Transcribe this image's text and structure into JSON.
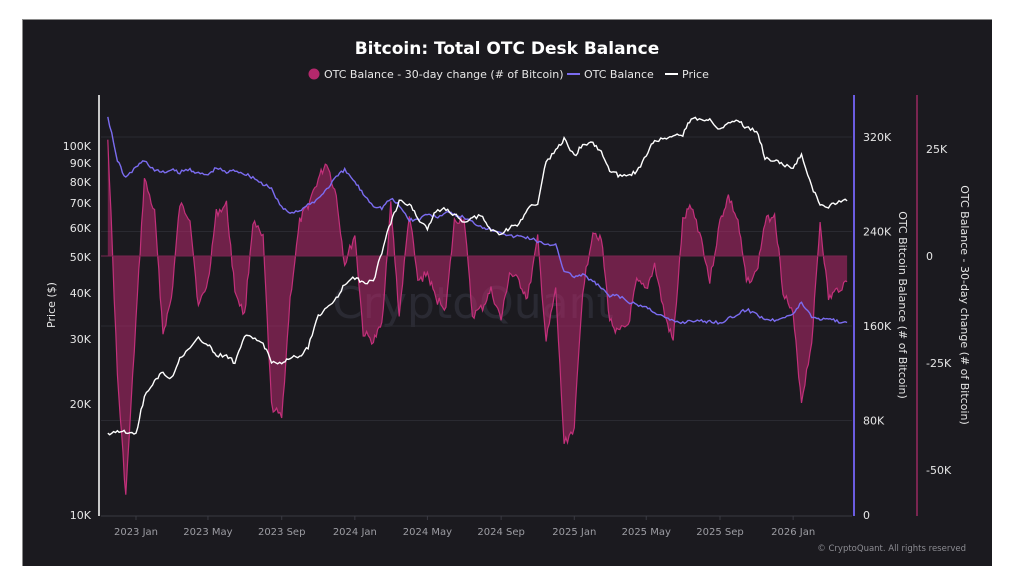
{
  "chart_data": {
    "type": "line",
    "title": "Bitcoin: Total OTC Desk Balance",
    "watermark": "CryptoQuant",
    "credit": "© CryptoQuant. All rights reserved",
    "legend": [
      {
        "name": "OTC Balance - 30-day change (# of Bitcoin)",
        "marker": "circle",
        "color": "#b5286c"
      },
      {
        "name": "OTC Balance",
        "marker": "line",
        "color": "#7b6cf0"
      },
      {
        "name": "Price",
        "marker": "line",
        "color": "#ffffff"
      }
    ],
    "legend_position": "top-center",
    "x_ticks": [
      "2023 Jan",
      "2023 May",
      "2023 Sep",
      "2024 Jan",
      "2024 May",
      "2024 Sep",
      "2025 Jan",
      "2025 May",
      "2025 Sep",
      "2026 Jan"
    ],
    "x_range": [
      "2022-11",
      "2026-04"
    ],
    "axes": {
      "left": {
        "label": "Price ($)",
        "scale": "log",
        "range": [
          10000,
          130000
        ],
        "ticks": [
          "10K",
          "20K",
          "30K",
          "40K",
          "50K",
          "60K",
          "70K",
          "80K",
          "90K",
          "100K"
        ],
        "tick_values": [
          10000,
          20000,
          30000,
          40000,
          50000,
          60000,
          70000,
          80000,
          90000,
          100000
        ]
      },
      "right1": {
        "label": "OTC Bitcoin Balance (# of Bitcoin)",
        "scale": "linear",
        "range": [
          0,
          355000
        ],
        "ticks": [
          "0",
          "80K",
          "160K",
          "240K",
          "320K"
        ],
        "tick_values": [
          0,
          80000,
          160000,
          240000,
          320000
        ],
        "color": "#7b6cf0"
      },
      "right2": {
        "label": "OTC Balance - 30-day change (# of Bitcoin)",
        "scale": "linear",
        "range": [
          -60000,
          35000
        ],
        "ticks": [
          "-50K",
          "-25K",
          "0",
          "25K"
        ],
        "tick_values": [
          -50000,
          -25000,
          0,
          25000
        ],
        "color": "#b5286c"
      }
    },
    "grid": true,
    "series": [
      {
        "name": "Price",
        "axis": "left",
        "color": "#ffffff",
        "x": [
          "2022-11-15",
          "2022-12-01",
          "2022-12-15",
          "2023-01-01",
          "2023-01-15",
          "2023-02-01",
          "2023-02-15",
          "2023-03-01",
          "2023-03-15",
          "2023-04-01",
          "2023-04-15",
          "2023-05-01",
          "2023-05-15",
          "2023-06-01",
          "2023-06-15",
          "2023-07-01",
          "2023-07-15",
          "2023-08-01",
          "2023-08-15",
          "2023-09-01",
          "2023-09-15",
          "2023-10-01",
          "2023-10-15",
          "2023-11-01",
          "2023-11-15",
          "2023-12-01",
          "2023-12-15",
          "2024-01-01",
          "2024-01-15",
          "2024-02-01",
          "2024-02-15",
          "2024-03-01",
          "2024-03-15",
          "2024-04-01",
          "2024-04-15",
          "2024-05-01",
          "2024-05-15",
          "2024-06-01",
          "2024-06-15",
          "2024-07-01",
          "2024-07-15",
          "2024-08-01",
          "2024-08-15",
          "2024-09-01",
          "2024-09-15",
          "2024-10-01",
          "2024-10-15",
          "2024-11-01",
          "2024-11-15",
          "2024-12-01",
          "2024-12-15",
          "2025-01-01",
          "2025-01-15",
          "2025-02-01",
          "2025-02-15",
          "2025-03-01",
          "2025-03-15",
          "2025-04-01",
          "2025-04-15",
          "2025-05-01",
          "2025-05-15",
          "2025-06-01",
          "2025-06-15",
          "2025-07-01",
          "2025-07-15",
          "2025-08-01",
          "2025-08-15",
          "2025-09-01",
          "2025-09-15",
          "2025-10-01",
          "2025-10-15",
          "2025-11-01",
          "2025-11-15",
          "2025-12-01",
          "2025-12-15",
          "2026-01-01",
          "2026-01-15",
          "2026-02-01",
          "2026-02-15",
          "2026-03-01",
          "2026-03-15",
          "2026-04-01"
        ],
        "values": [
          16500,
          17000,
          16800,
          16600,
          20800,
          23200,
          24300,
          23500,
          26500,
          28300,
          30000,
          29000,
          27000,
          27100,
          25800,
          30500,
          30200,
          29200,
          26100,
          25900,
          26600,
          27000,
          28500,
          34500,
          36500,
          38500,
          42500,
          44000,
          42700,
          43000,
          51500,
          62000,
          71000,
          69500,
          63800,
          60000,
          66500,
          67500,
          65000,
          62500,
          64000,
          64500,
          59000,
          58000,
          60000,
          61500,
          67500,
          70000,
          90000,
          97000,
          104000,
          94000,
          101000,
          102000,
          96500,
          86000,
          83500,
          84000,
          84500,
          95000,
          103500,
          104500,
          106000,
          107000,
          119000,
          117000,
          118500,
          111000,
          116000,
          118000,
          112000,
          110000,
          93000,
          91500,
          89000,
          87500,
          95000,
          77500,
          69000,
          68500,
          70500,
          71000
        ]
      },
      {
        "name": "OTC Balance",
        "axis": "right1",
        "color": "#7b6cf0",
        "x": [
          "2022-11-15",
          "2022-12-01",
          "2022-12-15",
          "2023-01-01",
          "2023-01-15",
          "2023-02-01",
          "2023-02-15",
          "2023-03-01",
          "2023-03-15",
          "2023-04-01",
          "2023-04-15",
          "2023-05-01",
          "2023-05-15",
          "2023-06-01",
          "2023-06-15",
          "2023-07-01",
          "2023-07-15",
          "2023-08-01",
          "2023-08-15",
          "2023-09-01",
          "2023-09-15",
          "2023-10-01",
          "2023-10-15",
          "2023-11-01",
          "2023-11-15",
          "2023-12-01",
          "2023-12-15",
          "2024-01-01",
          "2024-01-15",
          "2024-02-01",
          "2024-02-15",
          "2024-03-01",
          "2024-03-15",
          "2024-04-01",
          "2024-04-15",
          "2024-05-01",
          "2024-05-15",
          "2024-06-01",
          "2024-06-15",
          "2024-07-01",
          "2024-07-15",
          "2024-08-01",
          "2024-08-15",
          "2024-09-01",
          "2024-09-15",
          "2024-10-01",
          "2024-10-15",
          "2024-11-01",
          "2024-11-15",
          "2024-12-01",
          "2024-12-15",
          "2025-01-01",
          "2025-01-15",
          "2025-02-01",
          "2025-02-15",
          "2025-03-01",
          "2025-03-15",
          "2025-04-01",
          "2025-04-15",
          "2025-05-01",
          "2025-05-15",
          "2025-06-01",
          "2025-06-15",
          "2025-07-01",
          "2025-07-15",
          "2025-08-01",
          "2025-08-15",
          "2025-09-01",
          "2025-09-15",
          "2025-10-01",
          "2025-10-15",
          "2025-11-01",
          "2025-11-15",
          "2025-12-01",
          "2025-12-15",
          "2026-01-01",
          "2026-01-15",
          "2026-02-01",
          "2026-02-15",
          "2026-03-01",
          "2026-03-15",
          "2026-04-01"
        ],
        "values": [
          338000,
          300000,
          285000,
          295000,
          300000,
          292000,
          290000,
          292000,
          290000,
          293000,
          289000,
          288000,
          294000,
          290000,
          292000,
          289000,
          286000,
          280000,
          276000,
          260000,
          256000,
          258000,
          262000,
          268000,
          276000,
          286000,
          292000,
          282000,
          272000,
          262000,
          260000,
          268000,
          262000,
          250000,
          250000,
          255000,
          252000,
          256000,
          254000,
          252000,
          248000,
          244000,
          242000,
          240000,
          236000,
          236000,
          235000,
          232000,
          228000,
          230000,
          206000,
          202000,
          203000,
          198000,
          192000,
          185000,
          186000,
          180000,
          178000,
          176000,
          172000,
          167000,
          164000,
          163000,
          165000,
          164000,
          164000,
          163000,
          166000,
          170000,
          174000,
          170000,
          166000,
          165000,
          168000,
          170000,
          180000,
          168000,
          166000,
          167000,
          164000,
          163000
        ]
      },
      {
        "name": "OTC Balance - 30-day change (# of Bitcoin)",
        "axis": "right2",
        "type": "area",
        "color": "#b5286c",
        "x": [
          "2022-11-15",
          "2022-12-01",
          "2022-12-15",
          "2023-01-01",
          "2023-01-15",
          "2023-02-01",
          "2023-02-15",
          "2023-03-01",
          "2023-03-15",
          "2023-04-01",
          "2023-04-15",
          "2023-05-01",
          "2023-05-15",
          "2023-06-01",
          "2023-06-15",
          "2023-07-01",
          "2023-07-15",
          "2023-08-01",
          "2023-08-15",
          "2023-09-01",
          "2023-09-15",
          "2023-10-01",
          "2023-10-15",
          "2023-11-01",
          "2023-11-15",
          "2023-12-01",
          "2023-12-15",
          "2024-01-01",
          "2024-01-15",
          "2024-02-01",
          "2024-02-15",
          "2024-03-01",
          "2024-03-15",
          "2024-04-01",
          "2024-04-15",
          "2024-05-01",
          "2024-05-15",
          "2024-06-01",
          "2024-06-15",
          "2024-07-01",
          "2024-07-15",
          "2024-08-01",
          "2024-08-15",
          "2024-09-01",
          "2024-09-15",
          "2024-10-01",
          "2024-10-15",
          "2024-11-01",
          "2024-11-15",
          "2024-12-01",
          "2024-12-15",
          "2025-01-01",
          "2025-01-15",
          "2025-02-01",
          "2025-02-15",
          "2025-03-01",
          "2025-03-15",
          "2025-04-01",
          "2025-04-15",
          "2025-05-01",
          "2025-05-15",
          "2025-06-01",
          "2025-06-15",
          "2025-07-01",
          "2025-07-15",
          "2025-08-01",
          "2025-08-15",
          "2025-09-01",
          "2025-09-15",
          "2025-10-01",
          "2025-10-15",
          "2025-11-01",
          "2025-11-15",
          "2025-12-01",
          "2025-12-15",
          "2026-01-01",
          "2026-01-15",
          "2026-02-01",
          "2026-02-15",
          "2026-03-01",
          "2026-03-15",
          "2026-04-01"
        ],
        "values": [
          28000,
          -28000,
          -56000,
          -15000,
          18000,
          10000,
          -18000,
          -10000,
          12000,
          9000,
          -12000,
          -6000,
          10000,
          12000,
          -8000,
          -14000,
          8000,
          4000,
          -35000,
          -38000,
          -10000,
          8000,
          12000,
          18000,
          22000,
          14000,
          -2000,
          5000,
          -18000,
          -20000,
          -16000,
          12000,
          -14000,
          10000,
          -6000,
          -4000,
          -10000,
          -12000,
          8000,
          9000,
          -14000,
          -12000,
          -8000,
          -15000,
          -4000,
          -6000,
          -10000,
          4000,
          -20000,
          -8000,
          -44000,
          -40000,
          -8000,
          6000,
          4000,
          -15000,
          -18000,
          -16000,
          -6000,
          -8000,
          -2000,
          -14000,
          -20000,
          8000,
          12000,
          4000,
          -6000,
          8000,
          14000,
          8000,
          -6000,
          -4000,
          8000,
          10000,
          -8000,
          -14000,
          -34000,
          -20000,
          8000,
          -10000,
          -8000,
          -6000
        ]
      }
    ]
  }
}
